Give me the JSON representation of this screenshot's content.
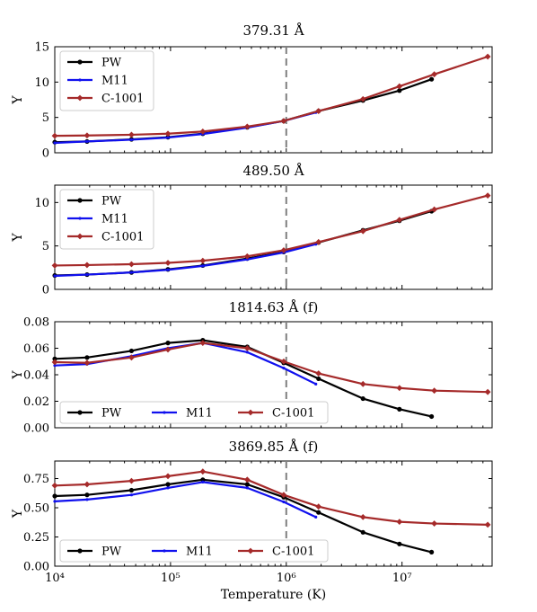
{
  "chart_data": {
    "shared": {
      "xlabel": "Temperature (K)",
      "xscale": "log",
      "xlim": [
        10000,
        60000000
      ],
      "xticks": [
        {
          "value": 10000,
          "label": "10⁴"
        },
        {
          "value": 100000,
          "label": "10⁵"
        },
        {
          "value": 1000000,
          "label": "10⁶"
        },
        {
          "value": 10000000,
          "label": "10⁷"
        }
      ],
      "vline_x": 1000000,
      "colors": {
        "PW": "#000000",
        "M11": "#1010ee",
        "C-1001": "#a52a2a"
      },
      "markers": {
        "PW": "circle",
        "M11": "dot",
        "C-1001": "diamond"
      }
    },
    "panels": [
      {
        "type": "line",
        "title": "379.31 Å",
        "ylabel": "Y",
        "ylim": [
          0,
          15
        ],
        "yticks": [
          {
            "value": 0,
            "label": "0"
          },
          {
            "value": 5,
            "label": "5"
          },
          {
            "value": 10,
            "label": "10"
          },
          {
            "value": 15,
            "label": "15"
          }
        ],
        "legend": {
          "placement": "upper-left",
          "layout": "column"
        },
        "series": [
          {
            "name": "PW",
            "x": [
              10000,
              19000,
              46000,
              95000,
              190000,
              460000,
              950000,
              1900000,
              4600000,
              9500000,
              18000000
            ],
            "y": [
              1.5,
              1.6,
              1.9,
              2.2,
              2.7,
              3.6,
              4.5,
              5.9,
              7.4,
              8.8,
              10.4
            ]
          },
          {
            "name": "M11",
            "x": [
              10000,
              19000,
              46000,
              95000,
              190000,
              460000,
              950000,
              1800000
            ],
            "y": [
              1.4,
              1.6,
              1.85,
              2.15,
              2.65,
              3.55,
              4.5,
              5.7
            ]
          },
          {
            "name": "C-1001",
            "x": [
              10000,
              19000,
              46000,
              95000,
              190000,
              460000,
              950000,
              1900000,
              4600000,
              9500000,
              19000000,
              55000000
            ],
            "y": [
              2.4,
              2.45,
              2.55,
              2.7,
              3.0,
              3.7,
              4.5,
              5.9,
              7.6,
              9.4,
              11.1,
              13.6
            ]
          }
        ]
      },
      {
        "type": "line",
        "title": "489.50 Å",
        "ylabel": "Y",
        "ylim": [
          0,
          12
        ],
        "yticks": [
          {
            "value": 0,
            "label": "0"
          },
          {
            "value": 5,
            "label": "5"
          },
          {
            "value": 10,
            "label": "10"
          }
        ],
        "legend": {
          "placement": "upper-left",
          "layout": "column"
        },
        "series": [
          {
            "name": "PW",
            "x": [
              10000,
              19000,
              46000,
              95000,
              190000,
              460000,
              950000,
              1900000,
              4600000,
              9500000,
              18000000
            ],
            "y": [
              1.6,
              1.7,
              1.95,
              2.3,
              2.75,
              3.55,
              4.3,
              5.4,
              6.8,
              7.9,
              9.0
            ]
          },
          {
            "name": "M11",
            "x": [
              10000,
              19000,
              46000,
              95000,
              190000,
              460000,
              950000,
              1800000
            ],
            "y": [
              1.55,
              1.7,
              1.95,
              2.25,
              2.7,
              3.45,
              4.25,
              5.2
            ]
          },
          {
            "name": "C-1001",
            "x": [
              10000,
              19000,
              46000,
              95000,
              190000,
              460000,
              950000,
              1900000,
              4600000,
              9500000,
              19000000,
              55000000
            ],
            "y": [
              2.75,
              2.8,
              2.9,
              3.05,
              3.3,
              3.8,
              4.5,
              5.45,
              6.7,
              8.0,
              9.2,
              10.8
            ]
          }
        ]
      },
      {
        "type": "line",
        "title": "1814.63 Å (f)",
        "ylabel": "Y",
        "ylim": [
          0,
          0.08
        ],
        "yticks": [
          {
            "value": 0,
            "label": "0.00"
          },
          {
            "value": 0.02,
            "label": "0.02"
          },
          {
            "value": 0.04,
            "label": "0.04"
          },
          {
            "value": 0.06,
            "label": "0.06"
          },
          {
            "value": 0.08,
            "label": "0.08"
          }
        ],
        "legend": {
          "placement": "lower-left",
          "layout": "row"
        },
        "series": [
          {
            "name": "PW",
            "x": [
              10000,
              19000,
              46000,
              95000,
              190000,
              460000,
              950000,
              1900000,
              4600000,
              9500000,
              18000000
            ],
            "y": [
              0.052,
              0.053,
              0.058,
              0.064,
              0.066,
              0.061,
              0.049,
              0.037,
              0.022,
              0.014,
              0.0085
            ]
          },
          {
            "name": "M11",
            "x": [
              10000,
              19000,
              46000,
              95000,
              190000,
              460000,
              950000,
              1800000
            ],
            "y": [
              0.047,
              0.048,
              0.054,
              0.06,
              0.064,
              0.057,
              0.045,
              0.033
            ]
          },
          {
            "name": "C-1001",
            "x": [
              10000,
              19000,
              46000,
              95000,
              190000,
              460000,
              950000,
              1900000,
              4600000,
              9500000,
              19000000,
              55000000
            ],
            "y": [
              0.0495,
              0.049,
              0.053,
              0.059,
              0.064,
              0.06,
              0.05,
              0.041,
              0.033,
              0.03,
              0.028,
              0.027
            ]
          }
        ]
      },
      {
        "type": "line",
        "title": "3869.85 Å (f)",
        "ylabel": "Y",
        "ylim": [
          0,
          0.9
        ],
        "yticks": [
          {
            "value": 0,
            "label": "0.00"
          },
          {
            "value": 0.25,
            "label": "0.25"
          },
          {
            "value": 0.5,
            "label": "0.50"
          },
          {
            "value": 0.75,
            "label": "0.75"
          }
        ],
        "legend": {
          "placement": "lower-left",
          "layout": "row"
        },
        "series": [
          {
            "name": "PW",
            "x": [
              10000,
              19000,
              46000,
              95000,
              190000,
              460000,
              950000,
              1900000,
              4600000,
              9500000,
              18000000
            ],
            "y": [
              0.6,
              0.61,
              0.65,
              0.7,
              0.74,
              0.7,
              0.59,
              0.46,
              0.29,
              0.19,
              0.12
            ]
          },
          {
            "name": "M11",
            "x": [
              10000,
              19000,
              46000,
              95000,
              190000,
              460000,
              950000,
              1800000
            ],
            "y": [
              0.555,
              0.57,
              0.61,
              0.67,
              0.72,
              0.67,
              0.55,
              0.42
            ]
          },
          {
            "name": "C-1001",
            "x": [
              10000,
              19000,
              46000,
              95000,
              190000,
              460000,
              950000,
              1900000,
              4600000,
              9500000,
              19000000,
              55000000
            ],
            "y": [
              0.69,
              0.7,
              0.73,
              0.77,
              0.81,
              0.74,
              0.61,
              0.51,
              0.42,
              0.38,
              0.365,
              0.355
            ]
          }
        ]
      }
    ]
  }
}
